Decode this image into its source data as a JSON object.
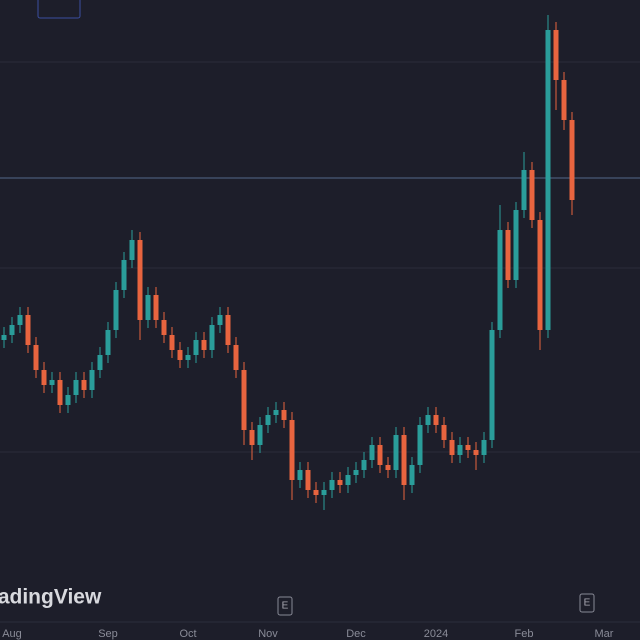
{
  "chart_data": {
    "type": "candlestick",
    "watermark": "TradingView",
    "categories": [
      null,
      "Aug",
      null,
      null,
      null,
      null,
      null,
      null,
      null,
      null,
      null,
      null,
      null,
      "Sep",
      null,
      null,
      null,
      null,
      null,
      null,
      null,
      null,
      null,
      "Oct",
      null,
      null,
      null,
      null,
      null,
      null,
      null,
      null,
      null,
      "Nov",
      null,
      null,
      null,
      null,
      null,
      null,
      null,
      null,
      null,
      null,
      "Dec",
      null,
      null,
      null,
      null,
      null,
      null,
      null,
      null,
      null,
      "2024",
      null,
      null,
      null,
      null,
      null,
      null,
      null,
      null,
      null,
      null,
      "Feb",
      null,
      null,
      null,
      null,
      null,
      null,
      null,
      null,
      null,
      "Mar"
    ],
    "open": [
      300,
      305,
      315,
      325,
      295,
      270,
      255,
      260,
      235,
      245,
      260,
      250,
      270,
      285,
      310,
      350,
      380,
      400,
      320,
      345,
      320,
      305,
      290,
      280,
      285,
      300,
      290,
      315,
      325,
      295,
      270,
      210,
      195,
      215,
      225,
      230,
      220,
      160,
      170,
      150,
      145,
      150,
      160,
      155,
      165,
      170,
      180,
      195,
      175,
      170,
      205,
      155,
      175,
      215,
      225,
      215,
      200,
      185,
      195,
      190,
      185,
      200,
      310,
      410,
      360,
      430,
      470,
      420,
      310,
      610,
      560,
      520,
      null,
      null,
      null,
      null
    ],
    "high": [
      313,
      323,
      333,
      333,
      303,
      278,
      268,
      268,
      253,
      268,
      268,
      278,
      293,
      318,
      358,
      388,
      410,
      408,
      353,
      353,
      328,
      313,
      298,
      293,
      308,
      308,
      323,
      333,
      333,
      303,
      278,
      218,
      223,
      233,
      238,
      238,
      228,
      178,
      178,
      158,
      158,
      168,
      168,
      173,
      178,
      188,
      203,
      203,
      183,
      213,
      213,
      183,
      223,
      233,
      233,
      223,
      208,
      203,
      203,
      198,
      208,
      318,
      435,
      418,
      438,
      488,
      478,
      428,
      625,
      618,
      568,
      528,
      null,
      null,
      null,
      null
    ],
    "low": [
      292,
      297,
      307,
      287,
      262,
      247,
      247,
      227,
      227,
      237,
      242,
      242,
      262,
      277,
      302,
      342,
      372,
      300,
      312,
      312,
      297,
      282,
      272,
      272,
      277,
      282,
      282,
      307,
      287,
      262,
      195,
      180,
      187,
      207,
      217,
      212,
      140,
      152,
      142,
      137,
      130,
      142,
      147,
      147,
      157,
      162,
      172,
      167,
      162,
      162,
      140,
      147,
      167,
      207,
      207,
      192,
      177,
      177,
      182,
      170,
      177,
      192,
      302,
      352,
      352,
      422,
      412,
      290,
      302,
      530,
      510,
      425,
      null,
      null,
      null,
      null
    ],
    "close": [
      305,
      315,
      325,
      295,
      270,
      255,
      260,
      235,
      245,
      260,
      250,
      270,
      285,
      310,
      350,
      380,
      400,
      320,
      345,
      320,
      305,
      290,
      280,
      285,
      300,
      290,
      315,
      325,
      295,
      270,
      210,
      195,
      215,
      225,
      230,
      220,
      160,
      170,
      150,
      145,
      150,
      160,
      155,
      165,
      170,
      180,
      195,
      175,
      170,
      205,
      155,
      175,
      215,
      225,
      215,
      200,
      185,
      195,
      190,
      185,
      200,
      310,
      410,
      360,
      430,
      470,
      420,
      310,
      610,
      560,
      520,
      440,
      null,
      null,
      null,
      null
    ],
    "up_color": "#2a9d9a",
    "down_color": "#e8643f",
    "ylim": [
      0,
      640
    ]
  }
}
